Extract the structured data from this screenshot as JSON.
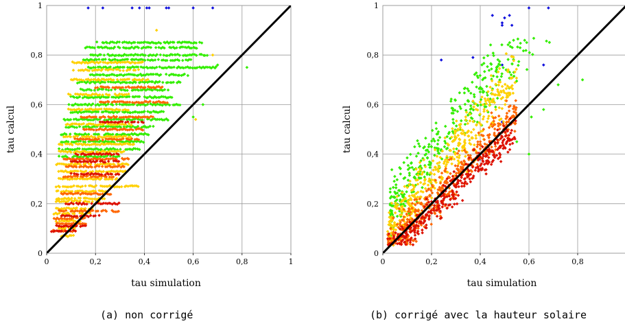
{
  "colors": {
    "blue": "#1010dd",
    "green": "#33ee00",
    "yellow": "#ffd000",
    "orange": "#ff6600",
    "red": "#dd1100",
    "grid": "#999999",
    "diagonal": "#000000"
  },
  "captions": {
    "a": "(a) non corrigé",
    "b": "(b) corrigé avec la hauteur solaire"
  },
  "chart_data": [
    {
      "type": "scatter",
      "panel": "a",
      "xlabel": "tau simulation",
      "ylabel": "tau calcul",
      "xlim": [
        0,
        1
      ],
      "ylim": [
        0,
        1
      ],
      "grid": true,
      "legend": "none",
      "x_ticks": [
        "0",
        "0,2",
        "0,4",
        "0,6",
        "0,8",
        "1"
      ],
      "y_ticks": [
        "0",
        "0,2",
        "0,4",
        "0,6",
        "0,8",
        "1"
      ],
      "diagonal": [
        [
          0,
          0
        ],
        [
          1,
          1
        ]
      ],
      "series": [
        {
          "color": "blue",
          "points": [
            [
              0.17,
              0.99
            ],
            [
              0.23,
              0.99
            ],
            [
              0.35,
              0.99
            ],
            [
              0.38,
              0.99
            ],
            [
              0.41,
              0.99
            ],
            [
              0.42,
              0.99
            ],
            [
              0.49,
              0.99
            ],
            [
              0.5,
              0.99
            ],
            [
              0.6,
              0.99
            ],
            [
              0.68,
              0.99
            ]
          ]
        },
        {
          "color": "green",
          "bands": [
            {
              "y": 0.85,
              "x0": 0.2,
              "x1": 0.64
            },
            {
              "y": 0.83,
              "x0": 0.16,
              "x1": 0.62
            },
            {
              "y": 0.8,
              "x0": 0.18,
              "x1": 0.66
            },
            {
              "y": 0.78,
              "x0": 0.15,
              "x1": 0.6
            },
            {
              "y": 0.75,
              "x0": 0.17,
              "x1": 0.7
            },
            {
              "y": 0.72,
              "x0": 0.18,
              "x1": 0.58
            },
            {
              "y": 0.69,
              "x0": 0.12,
              "x1": 0.55
            },
            {
              "y": 0.66,
              "x0": 0.14,
              "x1": 0.5
            },
            {
              "y": 0.63,
              "x0": 0.1,
              "x1": 0.52
            },
            {
              "y": 0.6,
              "x0": 0.09,
              "x1": 0.55
            },
            {
              "y": 0.57,
              "x0": 0.1,
              "x1": 0.48
            },
            {
              "y": 0.54,
              "x0": 0.07,
              "x1": 0.5
            },
            {
              "y": 0.51,
              "x0": 0.08,
              "x1": 0.45
            },
            {
              "y": 0.48,
              "x0": 0.06,
              "x1": 0.42
            },
            {
              "y": 0.45,
              "x0": 0.06,
              "x1": 0.4
            },
            {
              "y": 0.42,
              "x0": 0.05,
              "x1": 0.38
            },
            {
              "y": 0.39,
              "x0": 0.05,
              "x1": 0.3
            }
          ]
        },
        {
          "color": "yellow",
          "bands": [
            {
              "y": 0.77,
              "x0": 0.1,
              "x1": 0.4
            },
            {
              "y": 0.74,
              "x0": 0.11,
              "x1": 0.38
            },
            {
              "y": 0.7,
              "x0": 0.1,
              "x1": 0.42
            },
            {
              "y": 0.64,
              "x0": 0.09,
              "x1": 0.34
            },
            {
              "y": 0.58,
              "x0": 0.09,
              "x1": 0.34
            },
            {
              "y": 0.52,
              "x0": 0.08,
              "x1": 0.36
            },
            {
              "y": 0.47,
              "x0": 0.07,
              "x1": 0.35
            },
            {
              "y": 0.44,
              "x0": 0.05,
              "x1": 0.36
            },
            {
              "y": 0.41,
              "x0": 0.05,
              "x1": 0.32
            },
            {
              "y": 0.36,
              "x0": 0.04,
              "x1": 0.34
            },
            {
              "y": 0.33,
              "x0": 0.05,
              "x1": 0.33
            },
            {
              "y": 0.3,
              "x0": 0.05,
              "x1": 0.3
            },
            {
              "y": 0.27,
              "x0": 0.04,
              "x1": 0.38
            },
            {
              "y": 0.25,
              "x0": 0.04,
              "x1": 0.25
            },
            {
              "y": 0.22,
              "x0": 0.04,
              "x1": 0.24
            },
            {
              "y": 0.21,
              "x0": 0.04,
              "x1": 0.22
            },
            {
              "y": 0.18,
              "x0": 0.04,
              "x1": 0.2
            },
            {
              "y": 0.16,
              "x0": 0.03,
              "x1": 0.18
            },
            {
              "y": 0.13,
              "x0": 0.04,
              "x1": 0.14
            },
            {
              "y": 0.1,
              "x0": 0.05,
              "x1": 0.12
            },
            {
              "y": 0.07,
              "x0": 0.06,
              "x1": 0.11
            }
          ]
        },
        {
          "color": "orange",
          "bands": [
            {
              "y": 0.67,
              "x0": 0.2,
              "x1": 0.48
            },
            {
              "y": 0.61,
              "x0": 0.22,
              "x1": 0.5
            },
            {
              "y": 0.55,
              "x0": 0.14,
              "x1": 0.44
            },
            {
              "y": 0.5,
              "x0": 0.15,
              "x1": 0.4
            },
            {
              "y": 0.46,
              "x0": 0.11,
              "x1": 0.38
            },
            {
              "y": 0.38,
              "x0": 0.07,
              "x1": 0.34
            },
            {
              "y": 0.35,
              "x0": 0.08,
              "x1": 0.32
            },
            {
              "y": 0.31,
              "x0": 0.07,
              "x1": 0.28
            },
            {
              "y": 0.24,
              "x0": 0.06,
              "x1": 0.27
            },
            {
              "y": 0.17,
              "x0": 0.05,
              "x1": 0.3
            },
            {
              "y": 0.14,
              "x0": 0.03,
              "x1": 0.16
            },
            {
              "y": 0.12,
              "x0": 0.04,
              "x1": 0.16
            },
            {
              "y": 0.09,
              "x0": 0.02,
              "x1": 0.12
            }
          ]
        },
        {
          "color": "red",
          "bands": [
            {
              "y": 0.53,
              "x0": 0.22,
              "x1": 0.4
            },
            {
              "y": 0.4,
              "x0": 0.12,
              "x1": 0.3
            },
            {
              "y": 0.37,
              "x0": 0.1,
              "x1": 0.3
            },
            {
              "y": 0.32,
              "x0": 0.1,
              "x1": 0.3
            },
            {
              "y": 0.2,
              "x0": 0.08,
              "x1": 0.3
            },
            {
              "y": 0.15,
              "x0": 0.06,
              "x1": 0.22
            },
            {
              "y": 0.11,
              "x0": 0.04,
              "x1": 0.16
            },
            {
              "y": 0.09,
              "x0": 0.02,
              "x1": 0.12
            }
          ]
        },
        {
          "color": "green",
          "points": [
            [
              0.82,
              0.75
            ],
            [
              0.7,
              0.76
            ],
            [
              0.64,
              0.6
            ],
            [
              0.6,
              0.55
            ]
          ]
        },
        {
          "color": "yellow",
          "points": [
            [
              0.61,
              0.54
            ],
            [
              0.68,
              0.8
            ],
            [
              0.45,
              0.9
            ]
          ]
        }
      ]
    },
    {
      "type": "scatter",
      "panel": "b",
      "xlabel": "tau simulation",
      "ylabel": "tau calcul",
      "xlim": [
        0,
        1
      ],
      "ylim": [
        0,
        1
      ],
      "grid": true,
      "legend": "none",
      "x_ticks": [
        "0",
        "0,2",
        "0,4",
        "0,6",
        "0,8"
      ],
      "y_ticks": [
        "0",
        "0,2",
        "0,4",
        "0,6",
        "0,8",
        "1"
      ],
      "diagonal": [
        [
          0,
          0
        ],
        [
          1,
          1
        ]
      ],
      "series": [
        {
          "color": "blue",
          "points": [
            [
              0.6,
              0.99
            ],
            [
              0.68,
              0.99
            ],
            [
              0.45,
              0.96
            ],
            [
              0.5,
              0.95
            ],
            [
              0.52,
              0.96
            ],
            [
              0.49,
              0.93
            ],
            [
              0.49,
              0.92
            ],
            [
              0.53,
              0.92
            ],
            [
              0.24,
              0.78
            ],
            [
              0.37,
              0.79
            ],
            [
              0.49,
              0.76
            ],
            [
              0.66,
              0.76
            ],
            [
              0.49,
              0.53
            ],
            [
              0.4,
              0.38
            ]
          ]
        },
        {
          "color": "green",
          "cloud": {
            "cx": 0.28,
            "cy": 0.5,
            "slope": 1.25,
            "spread": 0.12,
            "xmin": 0.03,
            "xmax": 0.7
          }
        },
        {
          "color": "yellow",
          "cloud": {
            "cx": 0.22,
            "cy": 0.33,
            "slope": 1.15,
            "spread": 0.1,
            "xmin": 0.02,
            "xmax": 0.55
          }
        },
        {
          "color": "orange",
          "cloud": {
            "cx": 0.24,
            "cy": 0.25,
            "slope": 1.05,
            "spread": 0.08,
            "xmin": 0.02,
            "xmax": 0.55
          }
        },
        {
          "color": "red",
          "cloud": {
            "cx": 0.2,
            "cy": 0.17,
            "slope": 0.95,
            "spread": 0.06,
            "xmin": 0.02,
            "xmax": 0.55
          }
        },
        {
          "color": "green",
          "points": [
            [
              0.82,
              0.7
            ],
            [
              0.72,
              0.68
            ],
            [
              0.66,
              0.58
            ],
            [
              0.6,
              0.4
            ],
            [
              0.61,
              0.55
            ],
            [
              0.55,
              0.45
            ]
          ]
        }
      ]
    }
  ]
}
